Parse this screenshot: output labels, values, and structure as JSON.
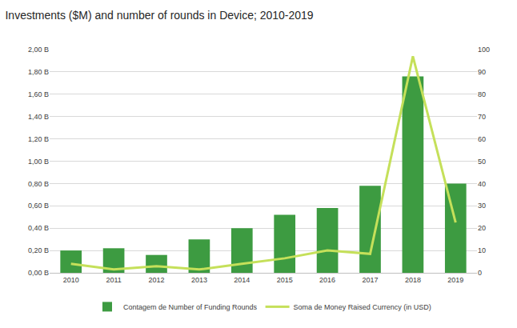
{
  "chart_data": {
    "type": "bar",
    "title": "Investments ($M) and number of rounds in Device; 2010-2019",
    "categories": [
      "2010",
      "2011",
      "2012",
      "2013",
      "2014",
      "2015",
      "2016",
      "2017",
      "2018",
      "2019"
    ],
    "series": [
      {
        "name": "Contagem de Number of Funding Rounds",
        "type": "bar",
        "axis": "y2",
        "color": "#3d9b41",
        "values": [
          10,
          11,
          8,
          15,
          20,
          26,
          29,
          39,
          88,
          40
        ]
      },
      {
        "name": "Soma de Money Raised Currency (in USD)",
        "type": "line",
        "color": "#c5e05a",
        "values": [
          0.08,
          0.03,
          0.06,
          0.03,
          0.08,
          0.13,
          0.2,
          0.17,
          1.94,
          0.45
        ]
      }
    ],
    "ylim": [
      0,
      2
    ],
    "yticks": [
      {
        "value": 0,
        "label": "0,00 B"
      },
      {
        "value": 0.2,
        "label": "0,20 B"
      },
      {
        "value": 0.4,
        "label": "0,40 B"
      },
      {
        "value": 0.6,
        "label": "0,60 B"
      },
      {
        "value": 0.8,
        "label": "0,80 B"
      },
      {
        "value": 1,
        "label": "1,00 B"
      },
      {
        "value": 1.2,
        "label": "1,20 B"
      },
      {
        "value": 1.4,
        "label": "1,40 B"
      },
      {
        "value": 1.6,
        "label": "1,60 B"
      },
      {
        "value": 1.8,
        "label": "1,80 B"
      },
      {
        "value": 2,
        "label": "2,00 B"
      }
    ],
    "y2lim": [
      0,
      100
    ],
    "y2ticks": [
      0,
      10,
      20,
      30,
      40,
      50,
      60,
      70,
      80,
      90,
      100
    ],
    "grid": true,
    "legend": "bottom"
  }
}
